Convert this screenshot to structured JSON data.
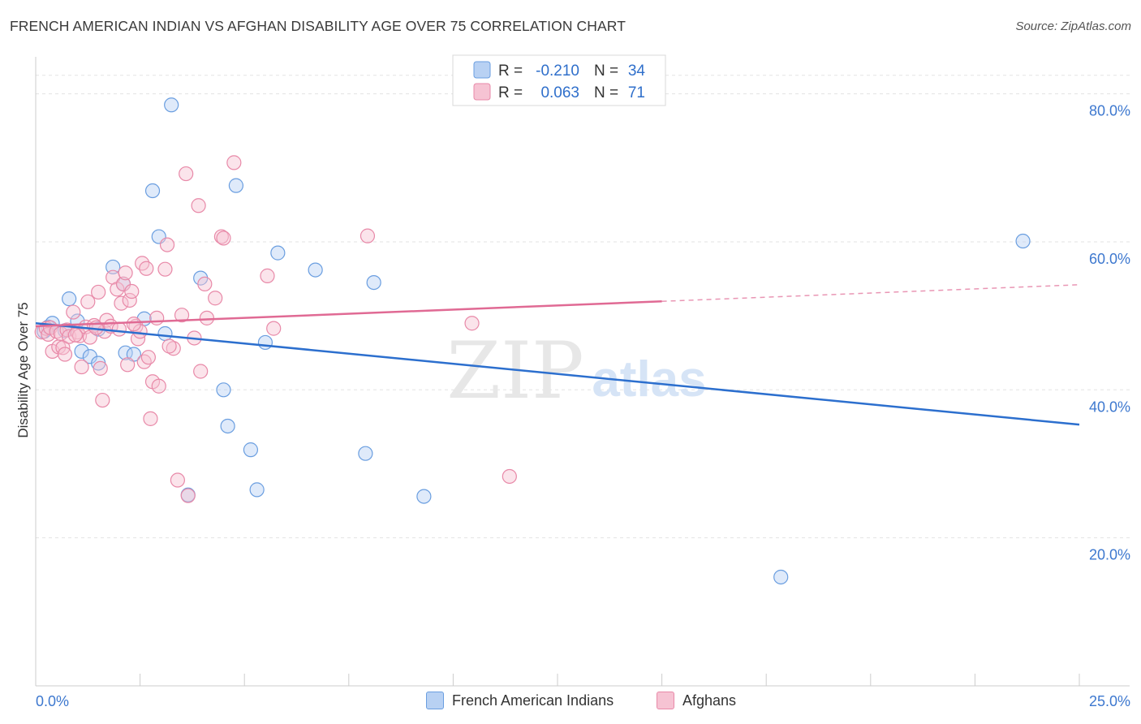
{
  "title": "FRENCH AMERICAN INDIAN VS AFGHAN DISABILITY AGE OVER 75 CORRELATION CHART",
  "source": "Source: ZipAtlas.com",
  "watermark": {
    "zip": "ZIP",
    "atlas": "atlas"
  },
  "stats": [
    {
      "r_label": "R =",
      "r_value": "-0.210",
      "n_label": "N =",
      "n_value": "34"
    },
    {
      "r_label": "R =",
      "r_value": "0.063",
      "n_label": "N =",
      "n_value": "71"
    }
  ],
  "chart_data": {
    "type": "scatter",
    "ylabel": "Disability Age Over 75",
    "xlim": [
      0,
      25
    ],
    "ylim": [
      0,
      85
    ],
    "x_tick_labels": [
      "0.0%",
      "25.0%"
    ],
    "y_ticks": [
      20,
      40,
      60,
      80
    ],
    "y_tick_labels": [
      "20.0%",
      "40.0%",
      "60.0%",
      "80.0%"
    ],
    "grid": true,
    "legend_position": "bottom-center",
    "series": [
      {
        "name": "French American Indians",
        "color": "#6a9ee0",
        "fill": "#b8d1f3",
        "trend_color": "#2c6fce",
        "trend": {
          "x0": 0,
          "y0": 49.0,
          "x1": 25,
          "y1": 35.3,
          "solid_until": 25
        },
        "points": [
          [
            0.3,
            48.5
          ],
          [
            0.4,
            49.0
          ],
          [
            0.7,
            48.0
          ],
          [
            0.8,
            52.3
          ],
          [
            1.0,
            49.3
          ],
          [
            1.1,
            45.2
          ],
          [
            1.3,
            44.5
          ],
          [
            1.5,
            43.6
          ],
          [
            1.5,
            48.2
          ],
          [
            1.85,
            56.6
          ],
          [
            2.1,
            54.3
          ],
          [
            2.15,
            45.0
          ],
          [
            2.35,
            44.8
          ],
          [
            2.6,
            49.6
          ],
          [
            2.8,
            66.9
          ],
          [
            2.95,
            60.7
          ],
          [
            3.1,
            47.6
          ],
          [
            3.25,
            78.5
          ],
          [
            3.65,
            25.8
          ],
          [
            3.95,
            55.1
          ],
          [
            4.5,
            40.0
          ],
          [
            4.6,
            35.1
          ],
          [
            4.8,
            67.6
          ],
          [
            5.15,
            31.9
          ],
          [
            5.3,
            26.5
          ],
          [
            5.5,
            46.4
          ],
          [
            5.8,
            58.5
          ],
          [
            6.7,
            56.2
          ],
          [
            7.9,
            31.4
          ],
          [
            8.1,
            54.5
          ],
          [
            9.3,
            25.6
          ],
          [
            17.85,
            14.7
          ],
          [
            23.65,
            60.1
          ],
          [
            0.2,
            47.9
          ]
        ]
      },
      {
        "name": "Afghans",
        "color": "#e889a8",
        "fill": "#f6c3d3",
        "trend_color": "#e06a94",
        "trend": {
          "x0": 0,
          "y0": 48.6,
          "x1": 25,
          "y1": 54.2,
          "solid_until": 15
        },
        "points": [
          [
            0.15,
            47.8
          ],
          [
            0.25,
            48.3
          ],
          [
            0.3,
            47.5
          ],
          [
            0.35,
            48.4
          ],
          [
            0.4,
            45.2
          ],
          [
            0.5,
            47.9
          ],
          [
            0.55,
            45.8
          ],
          [
            0.6,
            47.6
          ],
          [
            0.65,
            45.7
          ],
          [
            0.7,
            44.8
          ],
          [
            0.75,
            48.1
          ],
          [
            0.8,
            47.2
          ],
          [
            0.9,
            50.5
          ],
          [
            1.0,
            47.8
          ],
          [
            1.05,
            47.3
          ],
          [
            1.1,
            43.1
          ],
          [
            1.2,
            48.5
          ],
          [
            1.25,
            51.9
          ],
          [
            1.3,
            47.1
          ],
          [
            1.4,
            48.7
          ],
          [
            1.5,
            53.2
          ],
          [
            1.55,
            42.9
          ],
          [
            1.6,
            38.6
          ],
          [
            1.65,
            47.9
          ],
          [
            1.7,
            49.4
          ],
          [
            1.8,
            48.6
          ],
          [
            1.85,
            55.2
          ],
          [
            1.95,
            53.6
          ],
          [
            2.0,
            48.2
          ],
          [
            2.05,
            51.7
          ],
          [
            2.1,
            54.3
          ],
          [
            2.15,
            55.8
          ],
          [
            2.2,
            43.4
          ],
          [
            2.25,
            52.1
          ],
          [
            2.3,
            53.3
          ],
          [
            2.4,
            48.6
          ],
          [
            2.45,
            46.9
          ],
          [
            2.5,
            47.9
          ],
          [
            2.55,
            57.1
          ],
          [
            2.6,
            43.8
          ],
          [
            2.65,
            56.4
          ],
          [
            2.7,
            44.4
          ],
          [
            2.75,
            36.1
          ],
          [
            2.8,
            41.1
          ],
          [
            2.9,
            49.7
          ],
          [
            2.95,
            40.5
          ],
          [
            3.1,
            56.3
          ],
          [
            3.15,
            59.6
          ],
          [
            3.3,
            45.6
          ],
          [
            3.4,
            27.8
          ],
          [
            3.5,
            50.1
          ],
          [
            3.6,
            69.2
          ],
          [
            3.65,
            25.7
          ],
          [
            3.8,
            47.0
          ],
          [
            3.9,
            64.9
          ],
          [
            3.95,
            42.5
          ],
          [
            4.05,
            54.3
          ],
          [
            4.1,
            49.7
          ],
          [
            4.3,
            52.4
          ],
          [
            4.45,
            60.7
          ],
          [
            4.5,
            60.5
          ],
          [
            4.75,
            70.7
          ],
          [
            5.55,
            55.4
          ],
          [
            5.7,
            48.3
          ],
          [
            7.95,
            60.8
          ],
          [
            10.45,
            49.0
          ],
          [
            11.35,
            28.3
          ],
          [
            3.2,
            45.9
          ],
          [
            2.35,
            48.9
          ],
          [
            1.45,
            48.4
          ],
          [
            0.95,
            47.4
          ]
        ]
      }
    ]
  }
}
